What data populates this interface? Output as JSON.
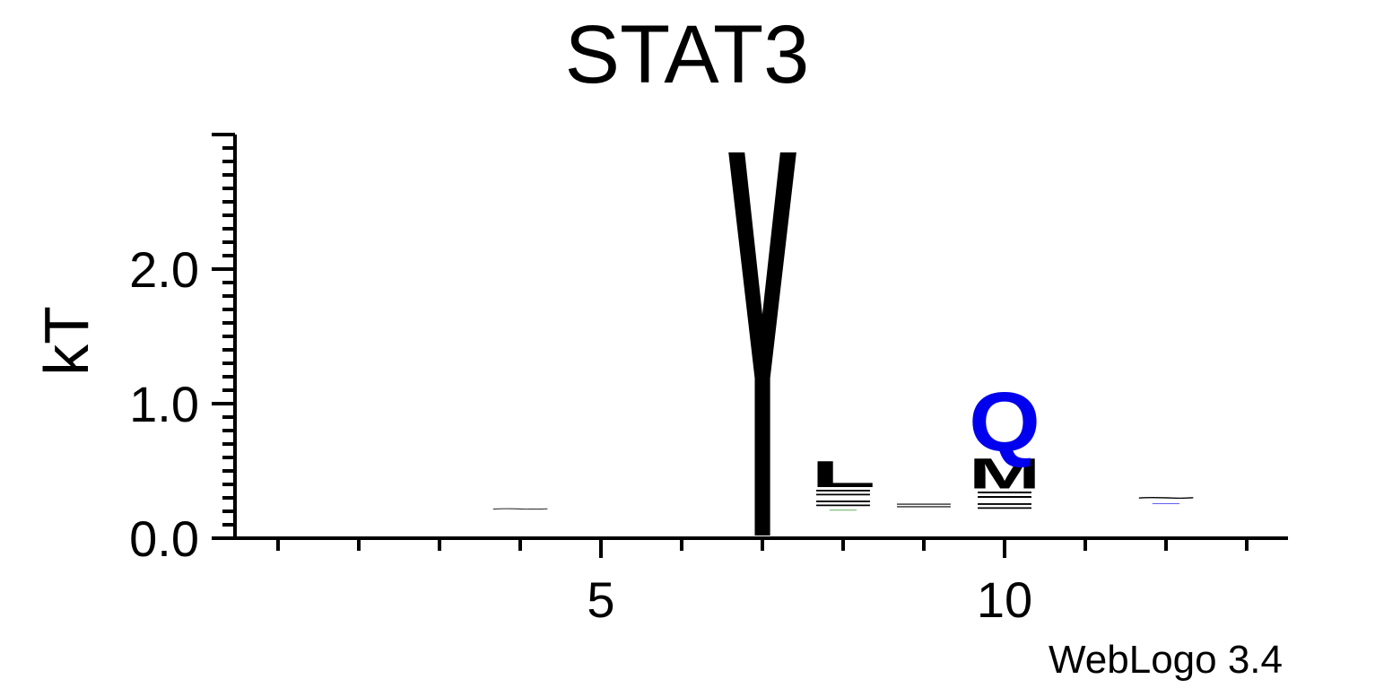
{
  "chart_data": {
    "type": "sequence-logo",
    "title": "STAT3",
    "ylabel": "kT",
    "xlabel": "",
    "footer": "WebLogo 3.4",
    "ylim": [
      0,
      3.0
    ],
    "xlim": [
      0.5,
      13.5
    ],
    "y_ticks": [
      "0.0",
      "1.0",
      "2.0"
    ],
    "x_ticks": [
      "5",
      "10"
    ],
    "colors": {
      "black": "#000000",
      "blue": "#0000ee",
      "green": "#008000"
    },
    "positions": [
      {
        "x": 4,
        "stack": [
          {
            "letter": "~",
            "color": "black",
            "bottom": 0.2,
            "top": 0.24
          }
        ]
      },
      {
        "x": 7,
        "stack": [
          {
            "letter": "Y",
            "color": "black",
            "bottom": 0.02,
            "top": 3.0
          }
        ]
      },
      {
        "x": 8,
        "stack": [
          {
            "letter": "-",
            "color": "green",
            "bottom": 0.2,
            "top": 0.22
          },
          {
            "letter": "=",
            "color": "black",
            "bottom": 0.22,
            "top": 0.3
          },
          {
            "letter": "=",
            "color": "black",
            "bottom": 0.3,
            "top": 0.38
          },
          {
            "letter": "L",
            "color": "black",
            "bottom": 0.38,
            "top": 0.58
          }
        ]
      },
      {
        "x": 9,
        "stack": [
          {
            "letter": "=",
            "color": "black",
            "bottom": 0.22,
            "top": 0.27
          }
        ]
      },
      {
        "x": 10,
        "stack": [
          {
            "letter": "=",
            "color": "black",
            "bottom": 0.2,
            "top": 0.28
          },
          {
            "letter": "=",
            "color": "black",
            "bottom": 0.28,
            "top": 0.37
          },
          {
            "letter": "M",
            "color": "black",
            "bottom": 0.37,
            "top": 0.6
          },
          {
            "letter": "Q",
            "color": "blue",
            "bottom": 0.65,
            "top": 1.1
          }
        ]
      },
      {
        "x": 12,
        "stack": [
          {
            "letter": "-",
            "color": "blue",
            "bottom": 0.25,
            "top": 0.27
          },
          {
            "letter": "~",
            "color": "black",
            "bottom": 0.27,
            "top": 0.33
          }
        ]
      }
    ]
  }
}
